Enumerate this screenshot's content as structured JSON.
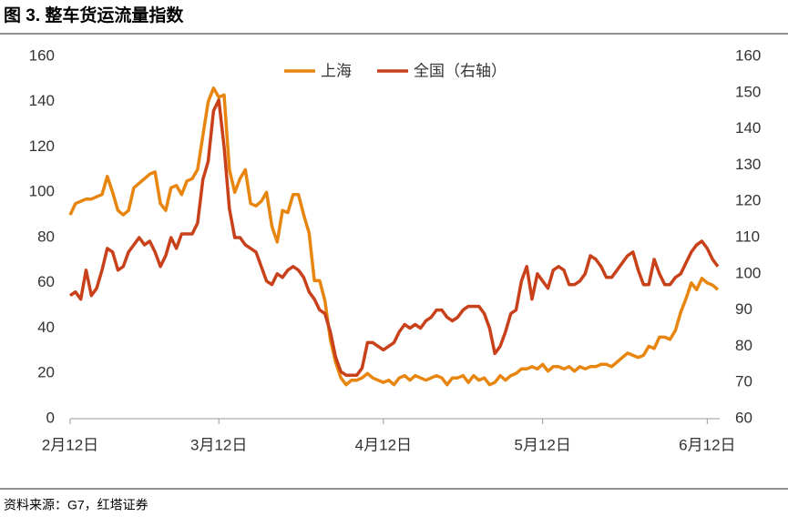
{
  "chart_data": {
    "type": "line",
    "title": "图 3. 整车货运流量指数",
    "source": "资料来源：G7，红塔证券",
    "x": [
      0,
      1,
      2,
      3,
      4,
      5,
      6,
      7,
      8,
      9,
      10,
      11,
      12,
      13,
      14,
      15,
      16,
      17,
      18,
      19,
      20,
      21,
      22,
      23,
      24,
      25,
      26,
      27,
      28,
      29,
      30,
      31,
      32,
      33,
      34,
      35,
      36,
      37,
      38,
      39,
      40,
      41,
      42,
      43,
      44,
      45,
      46,
      47,
      48,
      49,
      50,
      51,
      52,
      53,
      54,
      55,
      56,
      57,
      58,
      59,
      60,
      61,
      62,
      63,
      64,
      65,
      66,
      67,
      68,
      69,
      70,
      71,
      72,
      73,
      74,
      75,
      76,
      77,
      78,
      79,
      80,
      81,
      82,
      83,
      84,
      85,
      86,
      87,
      88,
      89,
      90,
      91,
      92,
      93,
      94,
      95,
      96,
      97,
      98,
      99,
      100,
      101,
      102,
      103,
      104,
      105,
      106,
      107,
      108,
      109,
      110,
      111,
      112,
      113,
      114,
      115,
      116,
      117,
      118,
      119,
      120,
      121,
      122
    ],
    "xlim": [
      0,
      122
    ],
    "xticks": [
      {
        "value": 0,
        "label": "2月12日"
      },
      {
        "value": 28,
        "label": "3月12日"
      },
      {
        "value": 59,
        "label": "4月12日"
      },
      {
        "value": 89,
        "label": "5月12日"
      },
      {
        "value": 120,
        "label": "6月12日"
      }
    ],
    "ylim": [
      0,
      160
    ],
    "yticks": [
      0,
      20,
      40,
      60,
      80,
      100,
      120,
      140,
      160
    ],
    "y2lim": [
      60,
      160
    ],
    "y2ticks": [
      60,
      70,
      80,
      90,
      100,
      110,
      120,
      130,
      140,
      150,
      160
    ],
    "legend": "top",
    "series": [
      {
        "name": "上海",
        "color": "#e8850f",
        "axis": "y",
        "values": [
          90,
          95,
          96,
          97,
          97,
          98,
          99,
          107,
          100,
          92,
          90,
          92,
          102,
          104,
          106,
          108,
          109,
          95,
          92,
          102,
          103,
          99,
          105,
          106,
          110,
          125,
          140,
          146,
          142,
          143,
          110,
          100,
          106,
          110,
          95,
          94,
          96,
          100,
          85,
          78,
          92,
          91,
          99,
          99,
          90,
          82,
          61,
          61,
          52,
          35,
          25,
          18,
          15,
          17,
          17,
          18,
          20,
          18,
          17,
          16,
          17,
          15,
          18,
          19,
          17,
          19,
          18,
          17,
          18,
          19,
          18,
          15,
          18,
          18,
          19,
          16,
          19,
          17,
          18,
          15,
          16,
          19,
          17,
          19,
          20,
          22,
          22,
          23,
          22,
          24,
          21,
          23,
          23,
          22,
          23,
          21,
          23,
          22,
          23,
          23,
          24,
          24,
          23,
          25,
          27,
          29,
          28,
          27,
          28,
          32,
          31,
          36,
          36,
          35,
          39,
          47,
          53,
          60,
          57,
          62,
          60,
          59,
          57
        ]
      },
      {
        "name": "全国（右轴）",
        "color": "#c8411b",
        "axis": "y2",
        "values": [
          94,
          95,
          93,
          101,
          94,
          96,
          101,
          107,
          106,
          101,
          102,
          106,
          108,
          110,
          108,
          109,
          106,
          102,
          105,
          110,
          107,
          111,
          111,
          111,
          114,
          126,
          131,
          145,
          148,
          135,
          118,
          110,
          110,
          108,
          107,
          106,
          102,
          98,
          97,
          100,
          99,
          101,
          102,
          101,
          99,
          95,
          93,
          90,
          89,
          84,
          77,
          73,
          72,
          72,
          72,
          74,
          81,
          81,
          80,
          79,
          80,
          81,
          84,
          86,
          85,
          86,
          85,
          87,
          88,
          90,
          90,
          88,
          87,
          88,
          90,
          91,
          91,
          91,
          89,
          85,
          78,
          80,
          84,
          89,
          90,
          98,
          102,
          93,
          100,
          98,
          96,
          101,
          102,
          101,
          97,
          97,
          98,
          100,
          105,
          104,
          102,
          99,
          99,
          101,
          103,
          105,
          106,
          101,
          97,
          97,
          104,
          100,
          97,
          97,
          99,
          100,
          103,
          106,
          108,
          109,
          107,
          104,
          102
        ]
      }
    ]
  }
}
